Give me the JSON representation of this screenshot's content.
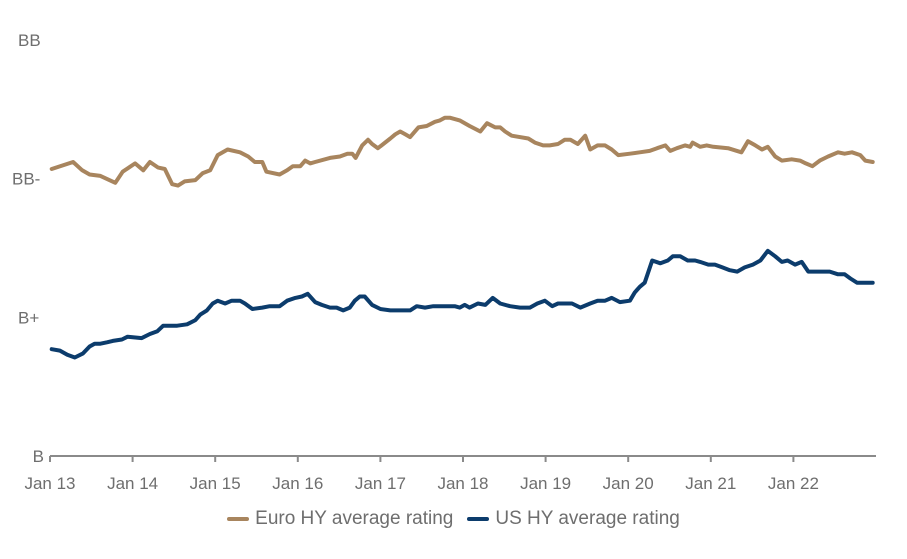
{
  "chart_data": {
    "type": "line",
    "title": "",
    "xlabel": "",
    "ylabel": "",
    "x_unit": "decimal year",
    "xlim": [
      2013.0,
      2023.0
    ],
    "x_ticks": [
      {
        "value": 2013,
        "label": "Jan 13"
      },
      {
        "value": 2014,
        "label": "Jan 14"
      },
      {
        "value": 2015,
        "label": "Jan 15"
      },
      {
        "value": 2016,
        "label": "Jan 16"
      },
      {
        "value": 2017,
        "label": "Jan 17"
      },
      {
        "value": 2018,
        "label": "Jan 18"
      },
      {
        "value": 2019,
        "label": "Jan 19"
      },
      {
        "value": 2020,
        "label": "Jan 20"
      },
      {
        "value": 2021,
        "label": "Jan 21"
      },
      {
        "value": 2022,
        "label": "Jan 22"
      }
    ],
    "y_unit": "rating notches above B",
    "ylim": [
      0,
      3
    ],
    "y_ticks": [
      {
        "value": 0,
        "label": "B"
      },
      {
        "value": 1,
        "label": "B+"
      },
      {
        "value": 2,
        "label": "BB-"
      },
      {
        "value": 3,
        "label": "BB"
      }
    ],
    "grid": false,
    "legend_position": "bottom-center",
    "series": [
      {
        "name": "Euro HY average rating",
        "color": "#a8855e",
        "points": [
          [
            2013.02,
            2.07
          ],
          [
            2013.28,
            2.12
          ],
          [
            2013.39,
            2.06
          ],
          [
            2013.48,
            2.03
          ],
          [
            2013.61,
            2.02
          ],
          [
            2013.79,
            1.97
          ],
          [
            2013.88,
            2.05
          ],
          [
            2014.03,
            2.11
          ],
          [
            2014.13,
            2.06
          ],
          [
            2014.21,
            2.12
          ],
          [
            2014.31,
            2.08
          ],
          [
            2014.39,
            2.07
          ],
          [
            2014.48,
            1.96
          ],
          [
            2014.55,
            1.95
          ],
          [
            2014.63,
            1.98
          ],
          [
            2014.76,
            1.99
          ],
          [
            2014.85,
            2.04
          ],
          [
            2014.94,
            2.06
          ],
          [
            2015.03,
            2.17
          ],
          [
            2015.15,
            2.21
          ],
          [
            2015.3,
            2.19
          ],
          [
            2015.4,
            2.16
          ],
          [
            2015.48,
            2.12
          ],
          [
            2015.57,
            2.12
          ],
          [
            2015.62,
            2.05
          ],
          [
            2015.78,
            2.03
          ],
          [
            2015.87,
            2.06
          ],
          [
            2015.94,
            2.09
          ],
          [
            2016.03,
            2.09
          ],
          [
            2016.09,
            2.13
          ],
          [
            2016.15,
            2.11
          ],
          [
            2016.21,
            2.12
          ],
          [
            2016.39,
            2.15
          ],
          [
            2016.51,
            2.16
          ],
          [
            2016.6,
            2.18
          ],
          [
            2016.66,
            2.18
          ],
          [
            2016.7,
            2.15
          ],
          [
            2016.78,
            2.24
          ],
          [
            2016.85,
            2.28
          ],
          [
            2016.9,
            2.25
          ],
          [
            2016.97,
            2.22
          ],
          [
            2017.12,
            2.29
          ],
          [
            2017.18,
            2.32
          ],
          [
            2017.24,
            2.34
          ],
          [
            2017.3,
            2.32
          ],
          [
            2017.36,
            2.3
          ],
          [
            2017.46,
            2.37
          ],
          [
            2017.56,
            2.38
          ],
          [
            2017.66,
            2.41
          ],
          [
            2017.72,
            2.42
          ],
          [
            2017.78,
            2.44
          ],
          [
            2017.84,
            2.44
          ],
          [
            2017.96,
            2.42
          ],
          [
            2018.08,
            2.38
          ],
          [
            2018.21,
            2.34
          ],
          [
            2018.29,
            2.4
          ],
          [
            2018.39,
            2.37
          ],
          [
            2018.45,
            2.37
          ],
          [
            2018.51,
            2.34
          ],
          [
            2018.59,
            2.31
          ],
          [
            2018.79,
            2.29
          ],
          [
            2018.87,
            2.26
          ],
          [
            2018.97,
            2.24
          ],
          [
            2019.05,
            2.24
          ],
          [
            2019.15,
            2.25
          ],
          [
            2019.23,
            2.28
          ],
          [
            2019.3,
            2.28
          ],
          [
            2019.39,
            2.25
          ],
          [
            2019.48,
            2.31
          ],
          [
            2019.54,
            2.21
          ],
          [
            2019.63,
            2.24
          ],
          [
            2019.72,
            2.24
          ],
          [
            2019.8,
            2.21
          ],
          [
            2019.88,
            2.17
          ],
          [
            2020.02,
            2.18
          ],
          [
            2020.14,
            2.19
          ],
          [
            2020.26,
            2.2
          ],
          [
            2020.35,
            2.22
          ],
          [
            2020.45,
            2.24
          ],
          [
            2020.51,
            2.2
          ],
          [
            2020.59,
            2.22
          ],
          [
            2020.69,
            2.24
          ],
          [
            2020.75,
            2.23
          ],
          [
            2020.78,
            2.26
          ],
          [
            2020.87,
            2.23
          ],
          [
            2020.95,
            2.24
          ],
          [
            2021.03,
            2.23
          ],
          [
            2021.21,
            2.22
          ],
          [
            2021.37,
            2.19
          ],
          [
            2021.45,
            2.27
          ],
          [
            2021.54,
            2.24
          ],
          [
            2021.62,
            2.21
          ],
          [
            2021.69,
            2.23
          ],
          [
            2021.78,
            2.16
          ],
          [
            2021.86,
            2.13
          ],
          [
            2021.98,
            2.14
          ],
          [
            2022.08,
            2.13
          ],
          [
            2022.15,
            2.11
          ],
          [
            2022.23,
            2.09
          ],
          [
            2022.32,
            2.13
          ],
          [
            2022.42,
            2.16
          ],
          [
            2022.54,
            2.19
          ],
          [
            2022.62,
            2.18
          ],
          [
            2022.71,
            2.19
          ],
          [
            2022.81,
            2.17
          ],
          [
            2022.87,
            2.13
          ],
          [
            2022.96,
            2.12
          ]
        ]
      },
      {
        "name": "US HY average rating",
        "color": "#0c3c6c",
        "points": [
          [
            2013.02,
            0.77
          ],
          [
            2013.12,
            0.76
          ],
          [
            2013.21,
            0.73
          ],
          [
            2013.3,
            0.71
          ],
          [
            2013.4,
            0.74
          ],
          [
            2013.48,
            0.79
          ],
          [
            2013.54,
            0.81
          ],
          [
            2013.61,
            0.81
          ],
          [
            2013.69,
            0.82
          ],
          [
            2013.76,
            0.83
          ],
          [
            2013.87,
            0.84
          ],
          [
            2013.94,
            0.86
          ],
          [
            2014.11,
            0.85
          ],
          [
            2014.21,
            0.88
          ],
          [
            2014.3,
            0.9
          ],
          [
            2014.37,
            0.94
          ],
          [
            2014.54,
            0.94
          ],
          [
            2014.66,
            0.95
          ],
          [
            2014.76,
            0.98
          ],
          [
            2014.82,
            1.02
          ],
          [
            2014.9,
            1.05
          ],
          [
            2014.97,
            1.1
          ],
          [
            2015.03,
            1.12
          ],
          [
            2015.12,
            1.1
          ],
          [
            2015.2,
            1.12
          ],
          [
            2015.3,
            1.12
          ],
          [
            2015.36,
            1.1
          ],
          [
            2015.45,
            1.06
          ],
          [
            2015.57,
            1.07
          ],
          [
            2015.66,
            1.08
          ],
          [
            2015.78,
            1.08
          ],
          [
            2015.87,
            1.12
          ],
          [
            2015.97,
            1.14
          ],
          [
            2016.05,
            1.15
          ],
          [
            2016.12,
            1.17
          ],
          [
            2016.21,
            1.11
          ],
          [
            2016.29,
            1.09
          ],
          [
            2016.39,
            1.07
          ],
          [
            2016.47,
            1.07
          ],
          [
            2016.55,
            1.05
          ],
          [
            2016.63,
            1.07
          ],
          [
            2016.69,
            1.12
          ],
          [
            2016.75,
            1.15
          ],
          [
            2016.81,
            1.15
          ],
          [
            2016.9,
            1.09
          ],
          [
            2017.0,
            1.06
          ],
          [
            2017.12,
            1.05
          ],
          [
            2017.36,
            1.05
          ],
          [
            2017.44,
            1.08
          ],
          [
            2017.54,
            1.07
          ],
          [
            2017.64,
            1.08
          ],
          [
            2017.9,
            1.08
          ],
          [
            2017.96,
            1.07
          ],
          [
            2018.02,
            1.09
          ],
          [
            2018.08,
            1.07
          ],
          [
            2018.18,
            1.1
          ],
          [
            2018.27,
            1.09
          ],
          [
            2018.36,
            1.14
          ],
          [
            2018.45,
            1.1
          ],
          [
            2018.57,
            1.08
          ],
          [
            2018.69,
            1.07
          ],
          [
            2018.81,
            1.07
          ],
          [
            2018.9,
            1.1
          ],
          [
            2018.99,
            1.12
          ],
          [
            2019.08,
            1.08
          ],
          [
            2019.15,
            1.1
          ],
          [
            2019.23,
            1.1
          ],
          [
            2019.32,
            1.1
          ],
          [
            2019.42,
            1.07
          ],
          [
            2019.54,
            1.1
          ],
          [
            2019.63,
            1.12
          ],
          [
            2019.72,
            1.12
          ],
          [
            2019.8,
            1.14
          ],
          [
            2019.9,
            1.11
          ],
          [
            2020.02,
            1.12
          ],
          [
            2020.08,
            1.18
          ],
          [
            2020.14,
            1.22
          ],
          [
            2020.2,
            1.25
          ],
          [
            2020.29,
            1.41
          ],
          [
            2020.39,
            1.39
          ],
          [
            2020.48,
            1.41
          ],
          [
            2020.54,
            1.44
          ],
          [
            2020.63,
            1.44
          ],
          [
            2020.72,
            1.41
          ],
          [
            2020.81,
            1.41
          ],
          [
            2020.87,
            1.4
          ],
          [
            2020.97,
            1.38
          ],
          [
            2021.05,
            1.38
          ],
          [
            2021.14,
            1.36
          ],
          [
            2021.23,
            1.34
          ],
          [
            2021.32,
            1.33
          ],
          [
            2021.41,
            1.36
          ],
          [
            2021.51,
            1.38
          ],
          [
            2021.6,
            1.41
          ],
          [
            2021.69,
            1.48
          ],
          [
            2021.78,
            1.44
          ],
          [
            2021.86,
            1.4
          ],
          [
            2021.93,
            1.41
          ],
          [
            2022.02,
            1.38
          ],
          [
            2022.1,
            1.4
          ],
          [
            2022.18,
            1.33
          ],
          [
            2022.26,
            1.33
          ],
          [
            2022.44,
            1.33
          ],
          [
            2022.54,
            1.31
          ],
          [
            2022.62,
            1.31
          ],
          [
            2022.69,
            1.28
          ],
          [
            2022.77,
            1.25
          ],
          [
            2022.87,
            1.25
          ],
          [
            2022.96,
            1.25
          ]
        ]
      }
    ]
  },
  "legend": {
    "items": [
      {
        "label": "Euro HY average rating",
        "color": "#a8855e"
      },
      {
        "label": "US HY average rating",
        "color": "#0c3c6c"
      }
    ]
  },
  "colors": {
    "axis": "#8a8a8a",
    "text": "#6e6e6e"
  }
}
